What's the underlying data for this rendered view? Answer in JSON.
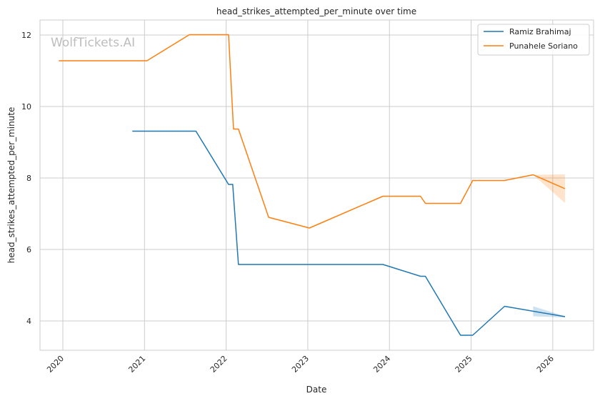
{
  "chart_data": {
    "type": "line",
    "title": "head_strikes_attempted_per_minute over time",
    "xlabel": "Date",
    "ylabel": "head_strikes_attempted_per_minute",
    "watermark": "WolfTickets.AI",
    "xlim": [
      2019.72,
      2026.5
    ],
    "ylim": [
      3.18,
      12.42
    ],
    "x_ticks": [
      2020,
      2021,
      2022,
      2023,
      2024,
      2025,
      2026
    ],
    "x_tick_labels": [
      "2020",
      "2021",
      "2022",
      "2023",
      "2024",
      "2025",
      "2026"
    ],
    "y_ticks": [
      4,
      6,
      8,
      10,
      12
    ],
    "y_tick_labels": [
      "4",
      "6",
      "8",
      "10",
      "12"
    ],
    "grid": true,
    "legend_position": "top-right",
    "series": [
      {
        "name": "Ramiz Brahimaj",
        "color": "#1f77b4",
        "points": [
          [
            2020.85,
            9.31
          ],
          [
            2021.63,
            9.31
          ],
          [
            2022.03,
            7.82
          ],
          [
            2022.08,
            7.82
          ],
          [
            2022.15,
            5.58
          ],
          [
            2023.92,
            5.58
          ],
          [
            2024.38,
            5.25
          ],
          [
            2024.44,
            5.25
          ],
          [
            2024.87,
            3.6
          ],
          [
            2025.02,
            3.6
          ],
          [
            2025.41,
            4.41
          ],
          [
            2026.15,
            4.12
          ]
        ],
        "band": {
          "x": [
            2025.76,
            2026.15
          ],
          "lower": [
            4.13,
            4.1
          ],
          "upper": [
            4.41,
            4.13
          ]
        }
      },
      {
        "name": "Punahele Soriano",
        "color": "#ff7f0e",
        "points": [
          [
            2019.95,
            11.28
          ],
          [
            2021.03,
            11.28
          ],
          [
            2021.55,
            12.01
          ],
          [
            2022.03,
            12.01
          ],
          [
            2022.09,
            9.37
          ],
          [
            2022.15,
            9.37
          ],
          [
            2022.52,
            6.9
          ],
          [
            2023.02,
            6.6
          ],
          [
            2023.92,
            7.49
          ],
          [
            2024.38,
            7.49
          ],
          [
            2024.44,
            7.29
          ],
          [
            2024.87,
            7.29
          ],
          [
            2025.02,
            7.93
          ],
          [
            2025.41,
            7.93
          ],
          [
            2025.76,
            8.09
          ],
          [
            2026.15,
            7.7
          ]
        ],
        "band": {
          "x": [
            2025.76,
            2026.15
          ],
          "lower": [
            8.09,
            7.3
          ],
          "upper": [
            8.09,
            8.1
          ]
        }
      }
    ]
  }
}
